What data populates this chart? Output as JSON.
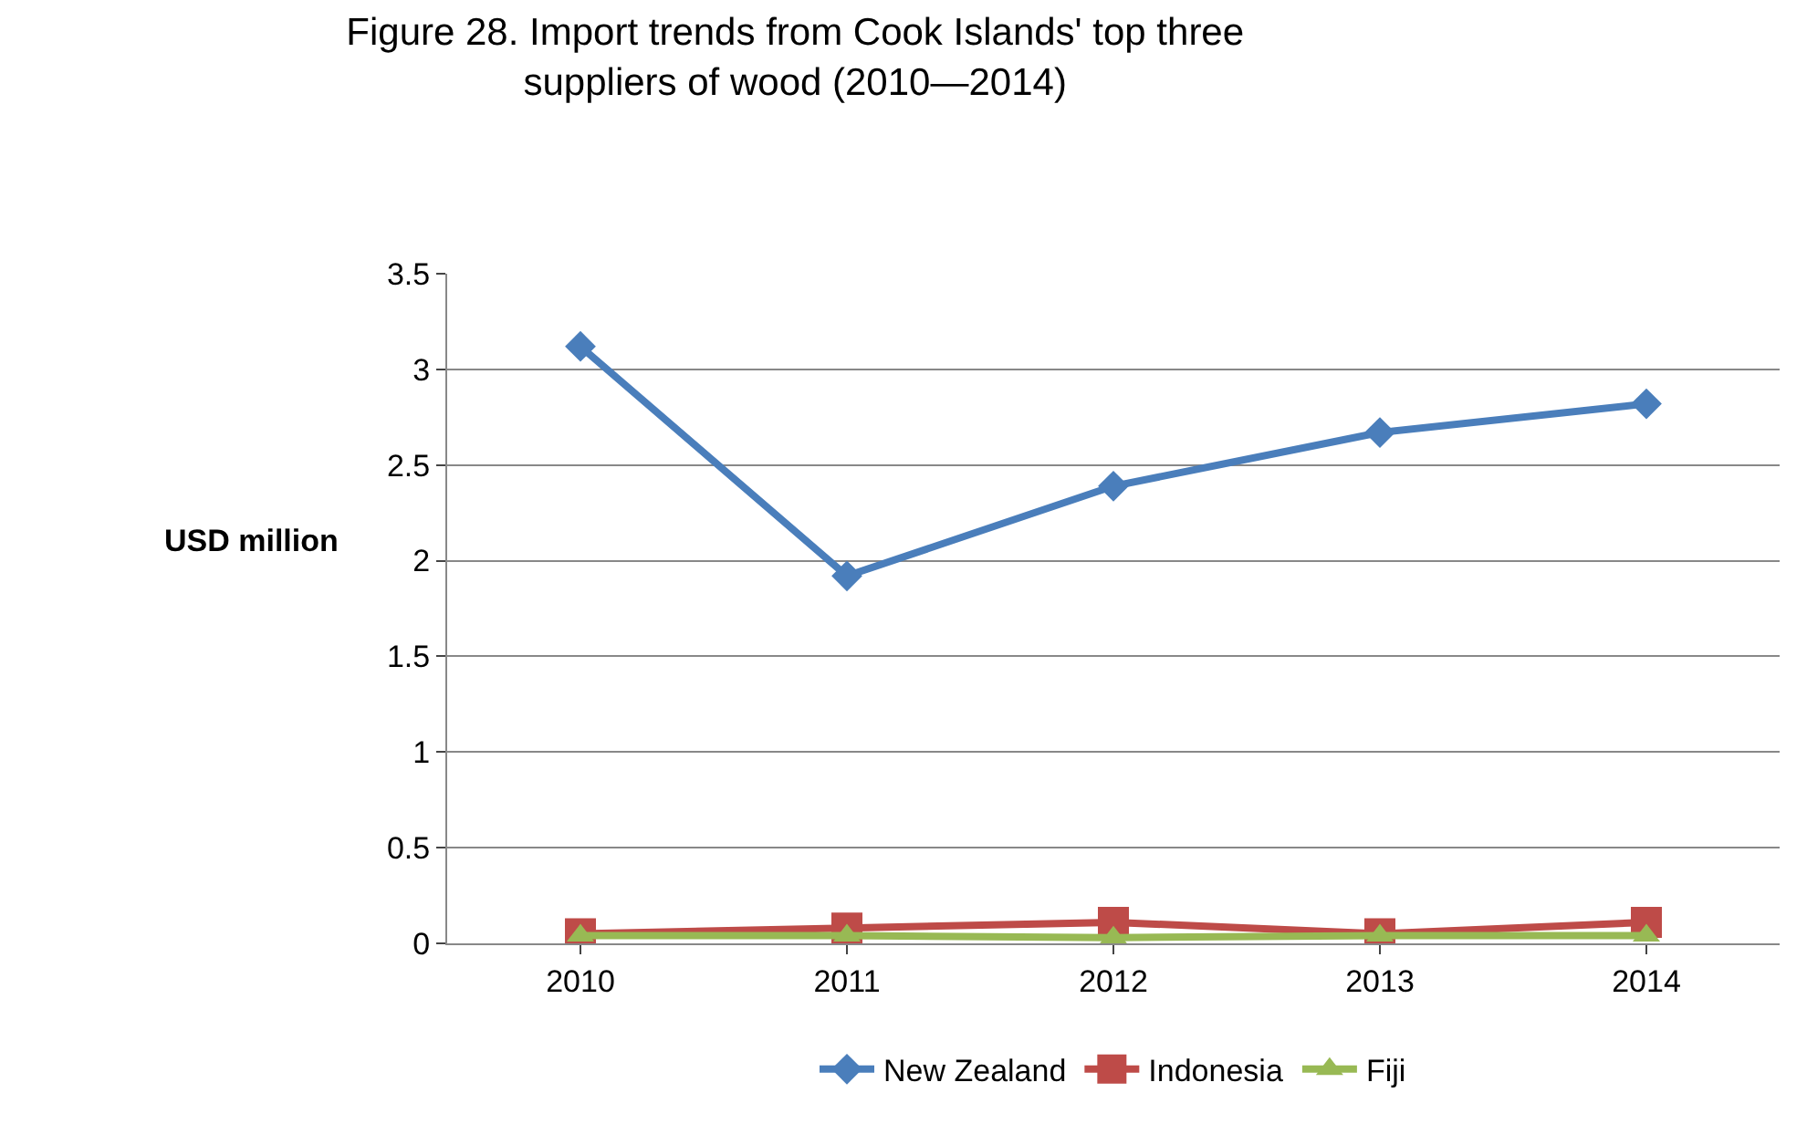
{
  "chart_data": {
    "type": "line",
    "title": "Figure 28. Import trends from Cook Islands' top three suppliers of wood (2010—2014)",
    "ylabel": "USD million",
    "categories": [
      "2010",
      "2011",
      "2012",
      "2013",
      "2014"
    ],
    "series": [
      {
        "name": "New Zealand",
        "color": "#4a7ebb",
        "marker": "diamond",
        "values": [
          3.12,
          1.92,
          2.39,
          2.67,
          2.82
        ]
      },
      {
        "name": "Indonesia",
        "color": "#be4b48",
        "marker": "square",
        "values": [
          0.05,
          0.08,
          0.11,
          0.05,
          0.11
        ]
      },
      {
        "name": "Fiji",
        "color": "#98b954",
        "marker": "triangle",
        "values": [
          0.04,
          0.04,
          0.03,
          0.04,
          0.04
        ]
      }
    ],
    "ylim": [
      0,
      3.5
    ],
    "yticks": [
      0,
      0.5,
      1,
      1.5,
      2,
      2.5,
      3,
      3.5
    ],
    "grid": "y",
    "legend": "bottom"
  }
}
